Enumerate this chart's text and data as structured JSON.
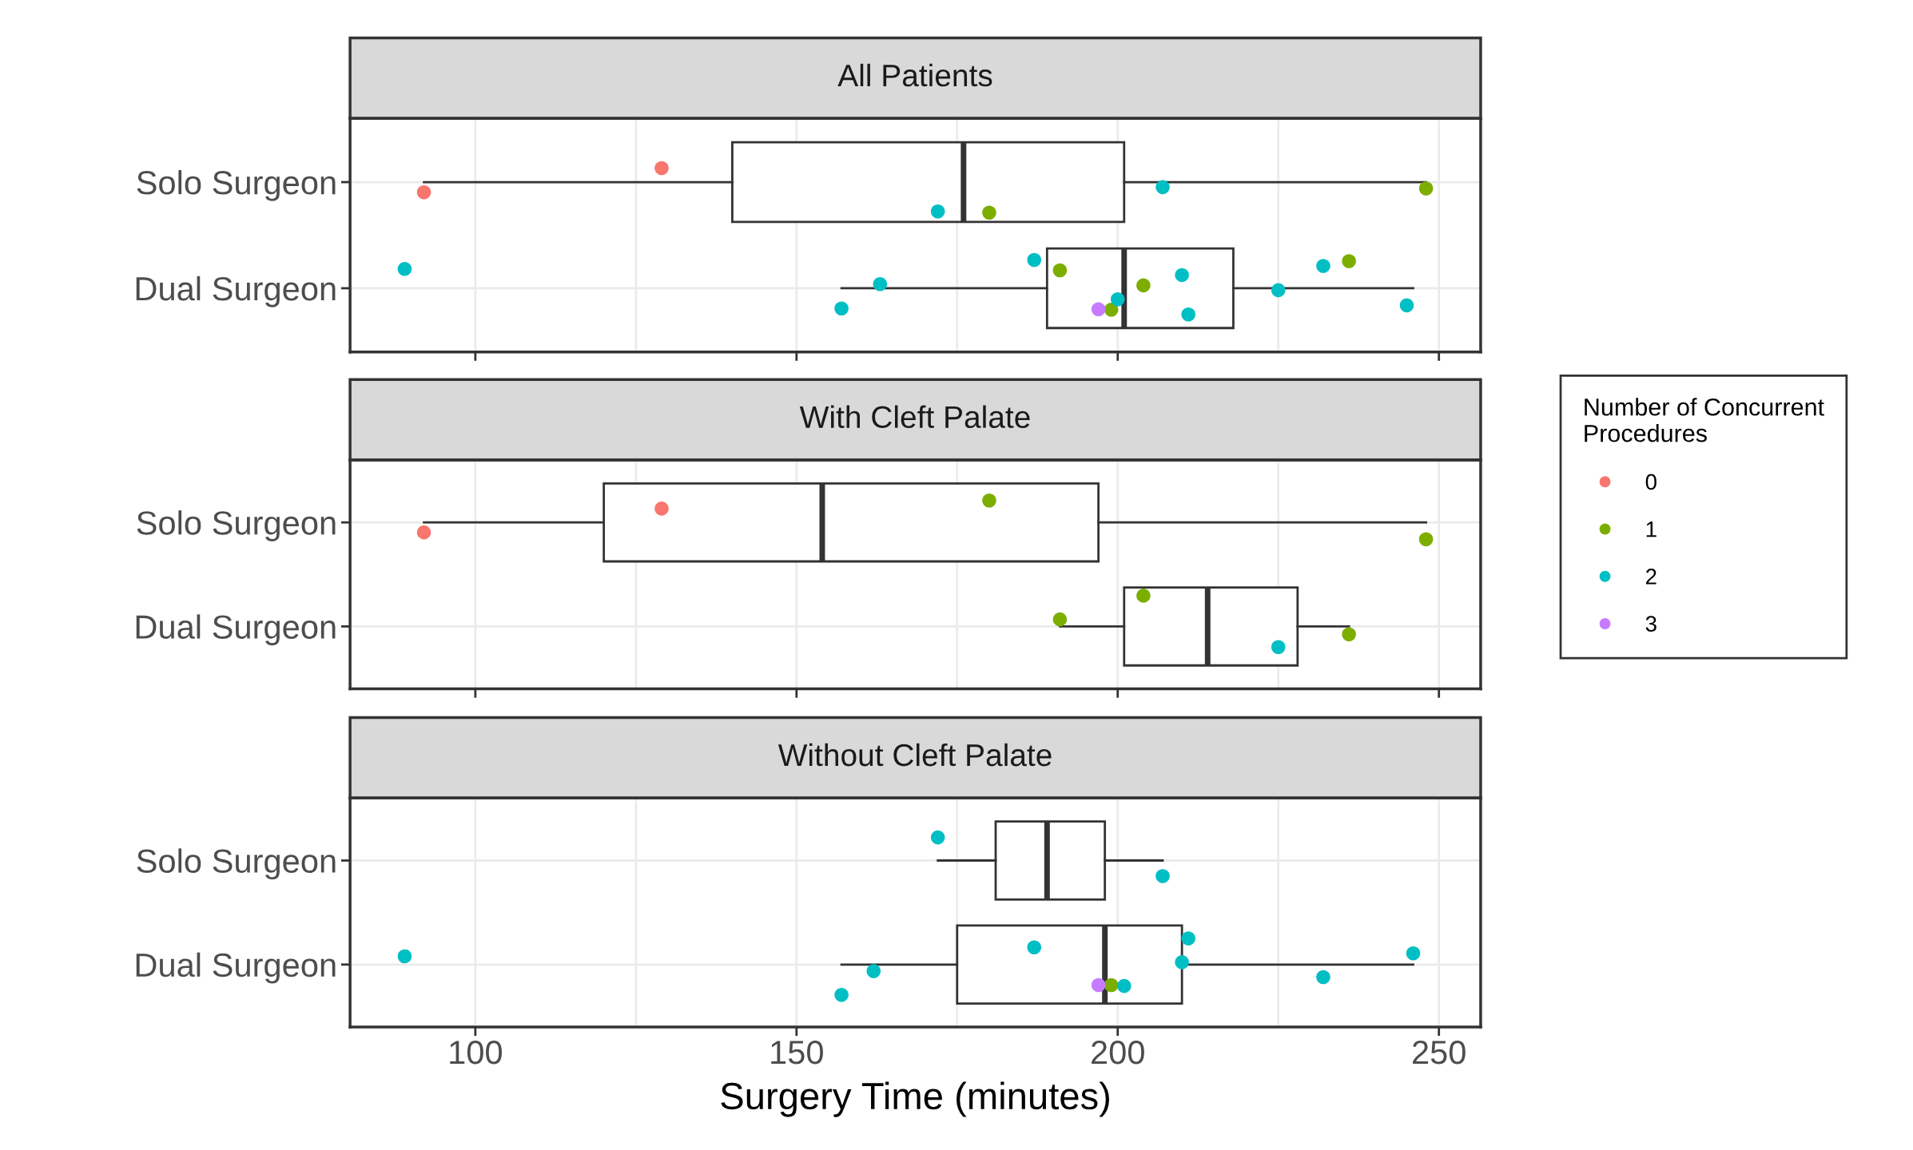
{
  "chart_data": [
    {
      "type": "box",
      "orientation": "horizontal",
      "title": "All Patients",
      "categories": [
        "Solo Surgeon",
        "Dual Surgeon"
      ],
      "boxes": [
        {
          "low": 92,
          "q1": 140,
          "median": 176,
          "q3": 201,
          "high": 248
        },
        {
          "low": 157,
          "q1": 189,
          "median": 201,
          "q3": 218,
          "high": 246
        }
      ],
      "series": [
        {
          "type": "scatter",
          "name": "0",
          "color": "#f8766d",
          "x": [
            "Solo Surgeon",
            "Solo Surgeon"
          ],
          "values": [
            92,
            129
          ]
        },
        {
          "type": "scatter",
          "name": "1",
          "color": "#7cae00",
          "x": [
            "Solo Surgeon",
            "Solo Surgeon",
            "Dual Surgeon",
            "Dual Surgeon",
            "Dual Surgeon",
            "Dual Surgeon"
          ],
          "values": [
            180,
            248,
            191,
            199,
            204,
            236
          ]
        },
        {
          "type": "scatter",
          "name": "2",
          "color": "#00bfc4",
          "x": [
            "Solo Surgeon",
            "Solo Surgeon",
            "Dual Surgeon",
            "Dual Surgeon",
            "Dual Surgeon",
            "Dual Surgeon",
            "Dual Surgeon",
            "Dual Surgeon",
            "Dual Surgeon",
            "Dual Surgeon",
            "Dual Surgeon",
            "Dual Surgeon"
          ],
          "values": [
            172,
            207,
            89,
            157,
            163,
            187,
            200,
            210,
            211,
            225,
            232,
            245
          ]
        },
        {
          "type": "scatter",
          "name": "3",
          "color": "#c77cff",
          "x": [
            "Dual Surgeon"
          ],
          "values": [
            197
          ]
        }
      ],
      "xlim": [
        80.5,
        256.5
      ],
      "xticks": [
        100,
        {
          "value": 125,
          "label": null
        },
        150,
        {
          "value": 175,
          "label": null
        },
        200,
        {
          "value": 225,
          "label": null
        },
        250
      ],
      "grid": true,
      "marker": "circle",
      "tick_labels": "y",
      "legend": "right",
      "legend_title": "Number of Concurrent\nProcedures"
    },
    {
      "type": "box",
      "orientation": "horizontal",
      "title": "With Cleft Palate",
      "categories": [
        "Solo Surgeon",
        "Dual Surgeon"
      ],
      "boxes": [
        {
          "low": 92,
          "q1": 120,
          "median": 154,
          "q3": 197,
          "high": 248
        },
        {
          "low": 191,
          "q1": 201,
          "median": 214,
          "q3": 228,
          "high": 236
        }
      ],
      "series": [
        {
          "type": "scatter",
          "name": "0",
          "color": "#f8766d",
          "x": [
            "Solo Surgeon",
            "Solo Surgeon"
          ],
          "values": [
            92,
            129
          ]
        },
        {
          "type": "scatter",
          "name": "1",
          "color": "#7cae00",
          "x": [
            "Solo Surgeon",
            "Solo Surgeon",
            "Dual Surgeon",
            "Dual Surgeon",
            "Dual Surgeon"
          ],
          "values": [
            180,
            248,
            191,
            204,
            236
          ]
        },
        {
          "type": "scatter",
          "name": "2",
          "color": "#00bfc4",
          "x": [
            "Dual Surgeon"
          ],
          "values": [
            225
          ]
        }
      ],
      "xlim": [
        80.5,
        256.5
      ],
      "xticks": [
        100,
        {
          "value": 125,
          "label": null
        },
        150,
        {
          "value": 175,
          "label": null
        },
        200,
        {
          "value": 225,
          "label": null
        },
        250
      ],
      "grid": true,
      "marker": "circle",
      "tick_labels": "y"
    },
    {
      "type": "box",
      "orientation": "horizontal",
      "title": "Without Cleft Palate",
      "xlabel": "Surgery Time (minutes)",
      "categories": [
        "Solo Surgeon",
        "Dual Surgeon"
      ],
      "boxes": [
        {
          "low": 172,
          "q1": 181,
          "median": 189,
          "q3": 198,
          "high": 207
        },
        {
          "low": 157,
          "q1": 175,
          "median": 198,
          "q3": 210,
          "high": 246
        }
      ],
      "series": [
        {
          "type": "scatter",
          "name": "1",
          "color": "#7cae00",
          "x": [
            "Dual Surgeon"
          ],
          "values": [
            199
          ]
        },
        {
          "type": "scatter",
          "name": "2",
          "color": "#00bfc4",
          "x": [
            "Solo Surgeon",
            "Solo Surgeon",
            "Dual Surgeon",
            "Dual Surgeon",
            "Dual Surgeon",
            "Dual Surgeon",
            "Dual Surgeon",
            "Dual Surgeon",
            "Dual Surgeon",
            "Dual Surgeon",
            "Dual Surgeon"
          ],
          "values": [
            172,
            207,
            89,
            157,
            162,
            187,
            201,
            210,
            211,
            232,
            246
          ]
        },
        {
          "type": "scatter",
          "name": "3",
          "color": "#c77cff",
          "x": [
            "Dual Surgeon"
          ],
          "values": [
            197
          ]
        }
      ],
      "xlim": [
        80.5,
        256.5
      ],
      "xticks": [
        100,
        {
          "value": 125,
          "label": null
        },
        150,
        {
          "value": 175,
          "label": null
        },
        200,
        {
          "value": 225,
          "label": null
        },
        250
      ],
      "grid": true,
      "marker": "circle"
    }
  ]
}
